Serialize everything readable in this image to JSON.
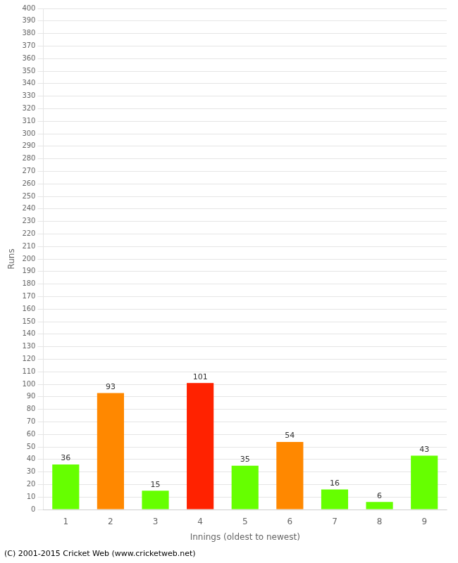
{
  "chart_data": {
    "type": "bar",
    "xlabel": "Innings (oldest to newest)",
    "ylabel": "Runs",
    "categories": [
      "1",
      "2",
      "3",
      "4",
      "5",
      "6",
      "7",
      "8",
      "9"
    ],
    "values": [
      36,
      93,
      15,
      101,
      35,
      54,
      16,
      6,
      43
    ],
    "colors": [
      "#66ff00",
      "#ff8800",
      "#66ff00",
      "#ff2200",
      "#66ff00",
      "#ff8800",
      "#66ff00",
      "#66ff00",
      "#66ff00"
    ],
    "ylim": [
      0,
      400
    ],
    "yticks": [
      0,
      10,
      20,
      30,
      40,
      50,
      60,
      70,
      80,
      90,
      100,
      110,
      120,
      130,
      140,
      150,
      160,
      170,
      180,
      190,
      200,
      210,
      220,
      230,
      240,
      250,
      260,
      270,
      280,
      290,
      300,
      310,
      320,
      330,
      340,
      350,
      360,
      370,
      380,
      390,
      400
    ],
    "grid": true,
    "data_labels": true,
    "annotations": [
      "(C) 2001-2015 Cricket Web (www.cricketweb.net)"
    ]
  }
}
